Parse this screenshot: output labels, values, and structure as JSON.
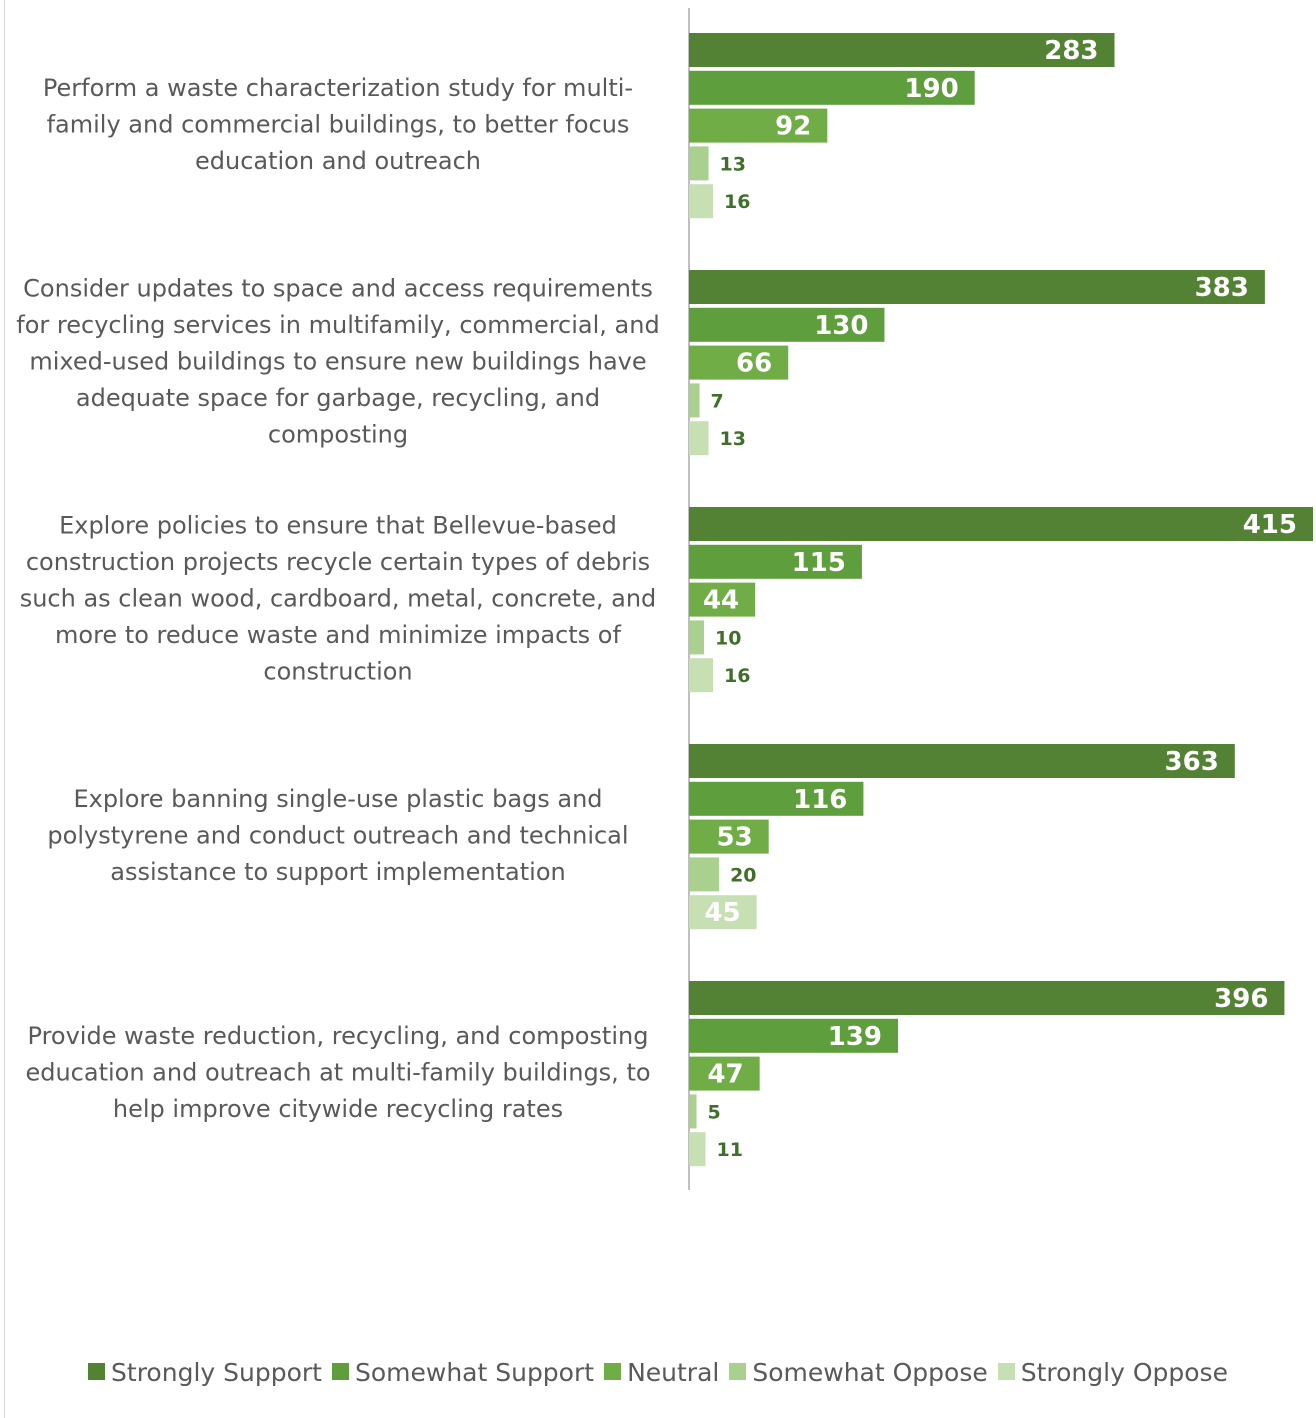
{
  "chart_data": {
    "type": "bar",
    "orientation": "horizontal",
    "categories": [
      "Perform a waste characterization study for multi-family and commercial buildings, to better focus education and outreach",
      "Consider updates to space and access requirements for recycling services in multifamily, commercial, and mixed-used buildings to ensure new buildings have adequate space for garbage, recycling, and composting",
      "Explore policies to ensure that Bellevue-based construction projects recycle certain types of debris such as clean wood, cardboard, metal, concrete, and more to reduce waste and minimize impacts of construction",
      "Explore banning single-use plastic bags and polystyrene and conduct outreach and technical assistance to support implementation",
      "Provide waste reduction, recycling, and composting education and outreach at multi-family buildings, to help improve citywide recycling rates"
    ],
    "category_lines": [
      [
        "Perform a waste characterization study for multi-",
        "family and commercial buildings, to better focus",
        "education and outreach"
      ],
      [
        "Consider updates to space and access requirements",
        "for recycling services in multifamily, commercial, and",
        "mixed-used buildings to ensure new buildings have",
        "adequate space for garbage, recycling, and",
        "composting"
      ],
      [
        "Explore policies to ensure that Bellevue-based",
        "construction projects recycle certain types of debris",
        "such as clean wood, cardboard, metal, concrete, and",
        "more to reduce waste and minimize impacts of",
        "construction"
      ],
      [
        "Explore banning single-use plastic bags and",
        "polystyrene and conduct outreach and technical",
        "assistance to support implementation"
      ],
      [
        "Provide waste reduction, recycling, and composting",
        "education and outreach at multi-family buildings, to",
        "help improve citywide recycling rates"
      ]
    ],
    "series": [
      {
        "name": "Strongly Support",
        "color": "#548235",
        "values": [
          283,
          383,
          415,
          363,
          396
        ]
      },
      {
        "name": "Somewhat Support",
        "color": "#5f9e3c",
        "values": [
          190,
          130,
          115,
          116,
          139
        ]
      },
      {
        "name": "Neutral",
        "color": "#70ad47",
        "values": [
          92,
          66,
          44,
          53,
          47
        ]
      },
      {
        "name": "Somewhat Oppose",
        "color": "#a9d08e",
        "values": [
          13,
          7,
          10,
          20,
          5
        ]
      },
      {
        "name": "Strongly Oppose",
        "color": "#c6e0b4",
        "values": [
          16,
          13,
          16,
          45,
          11
        ]
      }
    ],
    "xlim": [
      0,
      415
    ],
    "grid": false,
    "legend_position": "bottom",
    "data_labels": true
  }
}
